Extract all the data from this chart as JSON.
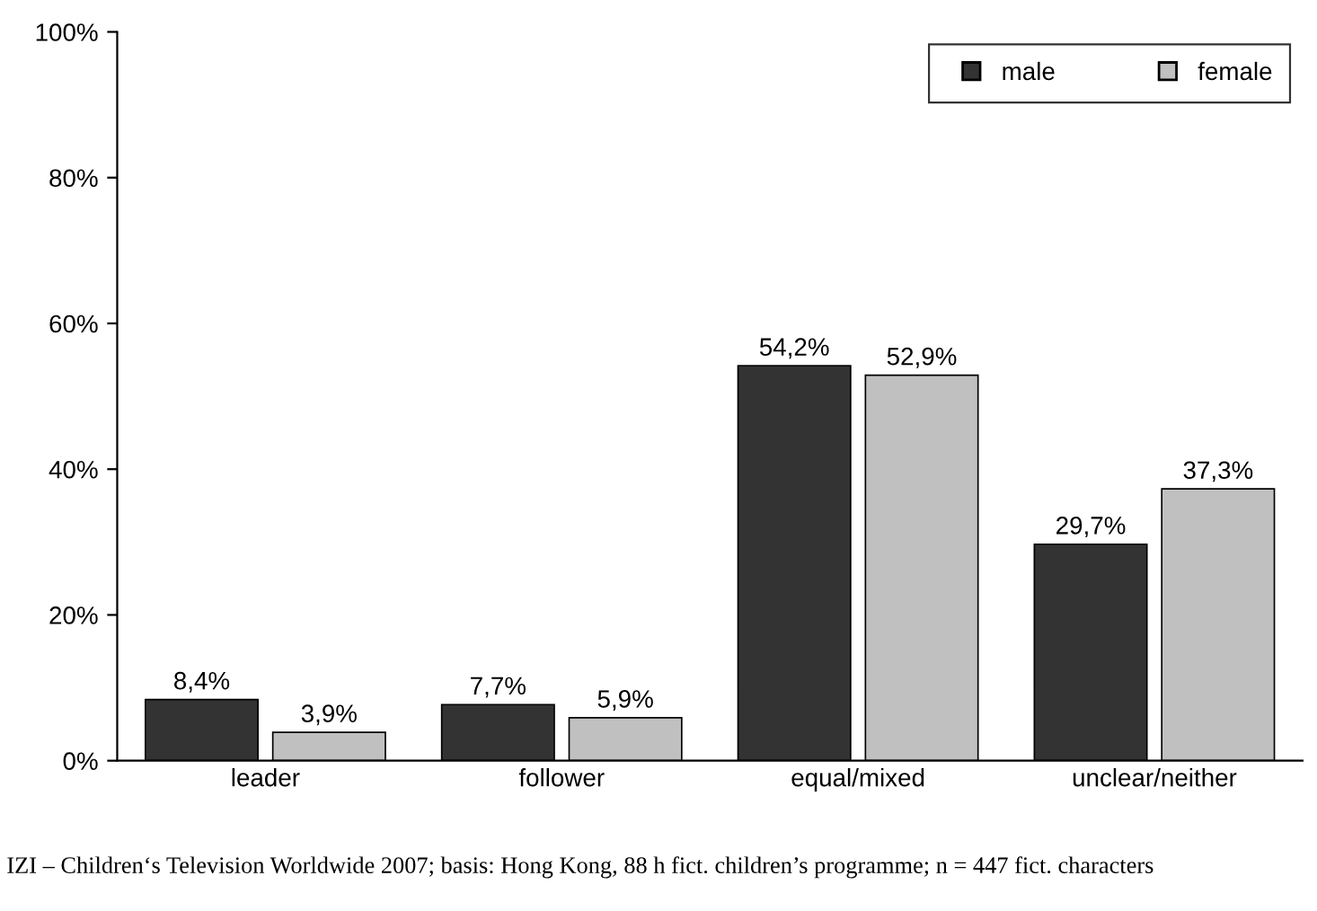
{
  "chart_data": {
    "type": "bar",
    "categories": [
      "leader",
      "follower",
      "equal/mixed",
      "unclear/neither"
    ],
    "series": [
      {
        "name": "male",
        "color": "#333333",
        "values": [
          8.4,
          7.7,
          54.2,
          29.7
        ],
        "value_labels": [
          "8,4%",
          "7,7%",
          "54,2%",
          "29,7%"
        ]
      },
      {
        "name": "female",
        "color": "#c0c0c0",
        "values": [
          3.9,
          5.9,
          52.9,
          37.3
        ],
        "value_labels": [
          "3,9%",
          "5,9%",
          "52,9%",
          "37,3%"
        ]
      }
    ],
    "ylim": [
      0,
      100
    ],
    "yticks": [
      {
        "value": 0,
        "label": "0%"
      },
      {
        "value": 20,
        "label": "20%"
      },
      {
        "value": 40,
        "label": "40%"
      },
      {
        "value": 60,
        "label": "60%"
      },
      {
        "value": 80,
        "label": "80%"
      },
      {
        "value": 100,
        "label": "100%"
      }
    ],
    "grid": false,
    "legend": "top right",
    "annotations": [
      "IZI – Children‘s Television Worldwide 2007; basis: Hong Kong, 88 h fict. children’s programme; n = 447 fict. characters"
    ]
  }
}
